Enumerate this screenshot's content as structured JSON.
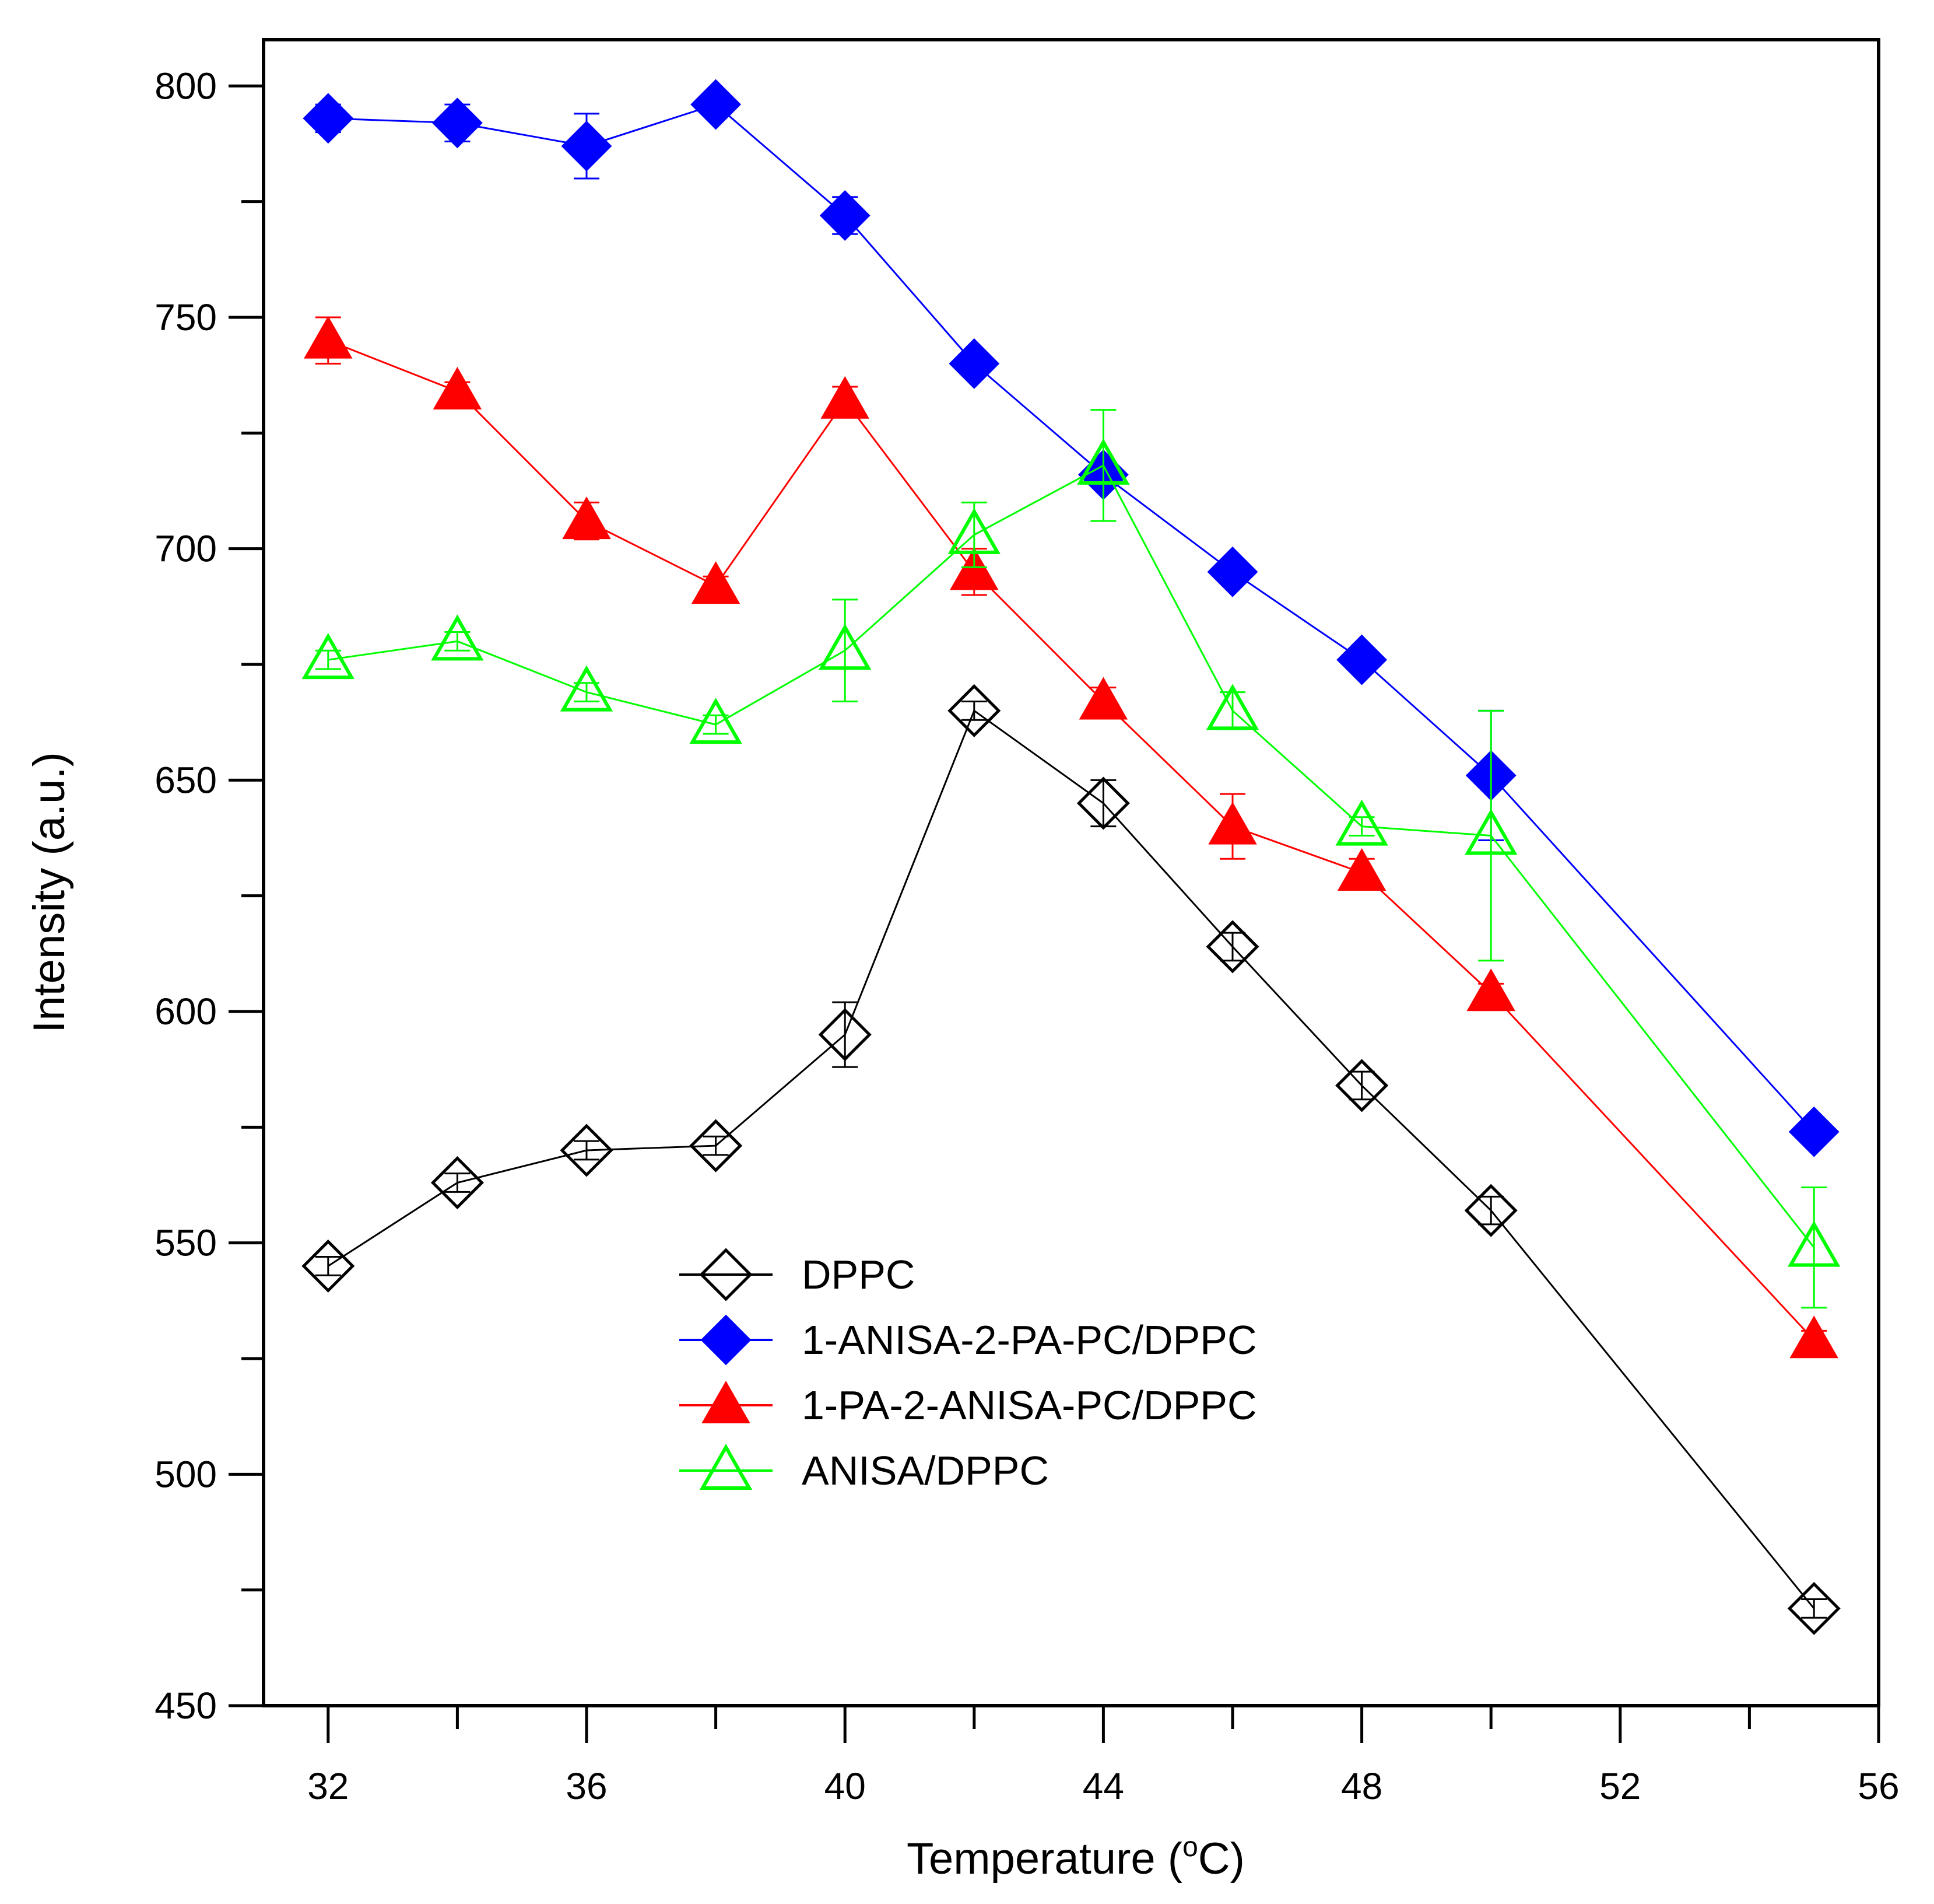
{
  "chart_data": {
    "type": "line",
    "title": "",
    "xlabel_main": "Temperature (",
    "xlabel_sup": "o",
    "xlabel_end": "C)",
    "ylabel": "Intensity (a.u.)",
    "xlim": [
      31,
      56
    ],
    "ylim": [
      450,
      810
    ],
    "xticks": [
      32,
      36,
      40,
      44,
      48,
      52,
      56
    ],
    "xticks_minor": [
      34,
      38,
      42,
      46,
      50,
      54
    ],
    "yticks": [
      450,
      500,
      550,
      600,
      650,
      700,
      750,
      800
    ],
    "yticks_minor": [
      475,
      525,
      575,
      625,
      675,
      725,
      775
    ],
    "legend_position": "lower-center",
    "x": [
      32,
      34,
      36,
      38,
      40,
      42,
      44,
      46,
      48,
      50,
      55
    ],
    "series": [
      {
        "name": "DPPC",
        "color": "#000000",
        "marker": "diamond-open",
        "values": [
          545,
          563,
          570,
          571,
          595,
          665,
          645,
          614,
          584,
          557,
          471
        ],
        "errors": [
          2,
          2,
          2,
          2,
          7,
          2,
          5,
          3,
          3,
          3,
          2
        ]
      },
      {
        "name": "1-ANISA-2-PA-PC/DPPC",
        "color": "#0000ff",
        "marker": "diamond-filled",
        "values": [
          793,
          792,
          787,
          796,
          772,
          740,
          716,
          695,
          676,
          651,
          574
        ],
        "errors": [
          3,
          4,
          7,
          2,
          4,
          2,
          2,
          2,
          2,
          14,
          2
        ]
      },
      {
        "name": "1-PA-2-ANISA-PC/DPPC",
        "color": "#ff0000",
        "marker": "triangle-filled",
        "values": [
          745,
          734,
          706,
          692,
          732,
          695,
          667,
          640,
          630,
          604,
          529
        ],
        "errors": [
          5,
          2,
          4,
          2,
          3,
          5,
          3,
          7,
          3,
          2,
          2
        ]
      },
      {
        "name": "ANISA/DPPC",
        "color": "#00ff00",
        "marker": "triangle-open",
        "values": [
          676,
          680,
          669,
          662,
          678,
          703,
          718,
          665,
          640,
          638,
          549
        ],
        "errors": [
          2,
          2,
          2,
          2,
          11,
          7,
          12,
          4,
          2,
          27,
          13
        ]
      }
    ]
  }
}
